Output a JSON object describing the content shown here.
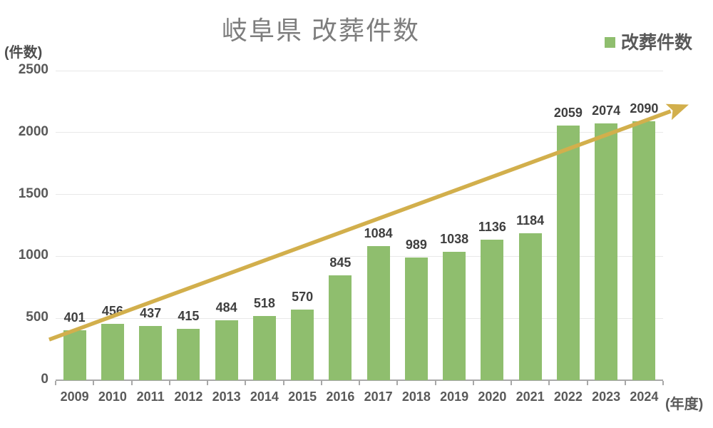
{
  "title": "岐阜県 改葬件数",
  "legend": {
    "label": "改葬件数"
  },
  "axes": {
    "y_unit": "(件数)",
    "x_unit": "(年度)"
  },
  "colors": {
    "bar": "#8fbe6e",
    "arrow": "#d2af4c",
    "title_text": "#7d7d7d",
    "axis_text": "#595959",
    "data_label_text": "#3f3f3f",
    "gridline": "#e8e8e8",
    "axis_line": "#a8a8a8",
    "background": "#ffffff"
  },
  "chart_data": {
    "type": "bar",
    "title": "岐阜県 改葬件数",
    "series_name": "改葬件数",
    "categories": [
      "2009",
      "2010",
      "2011",
      "2012",
      "2013",
      "2014",
      "2015",
      "2016",
      "2017",
      "2018",
      "2019",
      "2020",
      "2021",
      "2022",
      "2023",
      "2024"
    ],
    "values": [
      401,
      456,
      437,
      415,
      484,
      518,
      570,
      845,
      1084,
      989,
      1038,
      1136,
      1184,
      2059,
      2074,
      2090
    ],
    "xlabel": "(年度)",
    "ylabel": "(件数)",
    "ylim": [
      0,
      2500
    ],
    "yticks": [
      0,
      500,
      1000,
      1500,
      2000,
      2500
    ],
    "grid": true,
    "data_labels": true,
    "legend_position": "top-right",
    "annotations": [
      {
        "type": "trend-arrow",
        "color": "#d2af4c",
        "from": {
          "category_index": -0.17,
          "value": 328
        },
        "to": {
          "category_index": 16.2,
          "value": 2172
        }
      }
    ]
  }
}
